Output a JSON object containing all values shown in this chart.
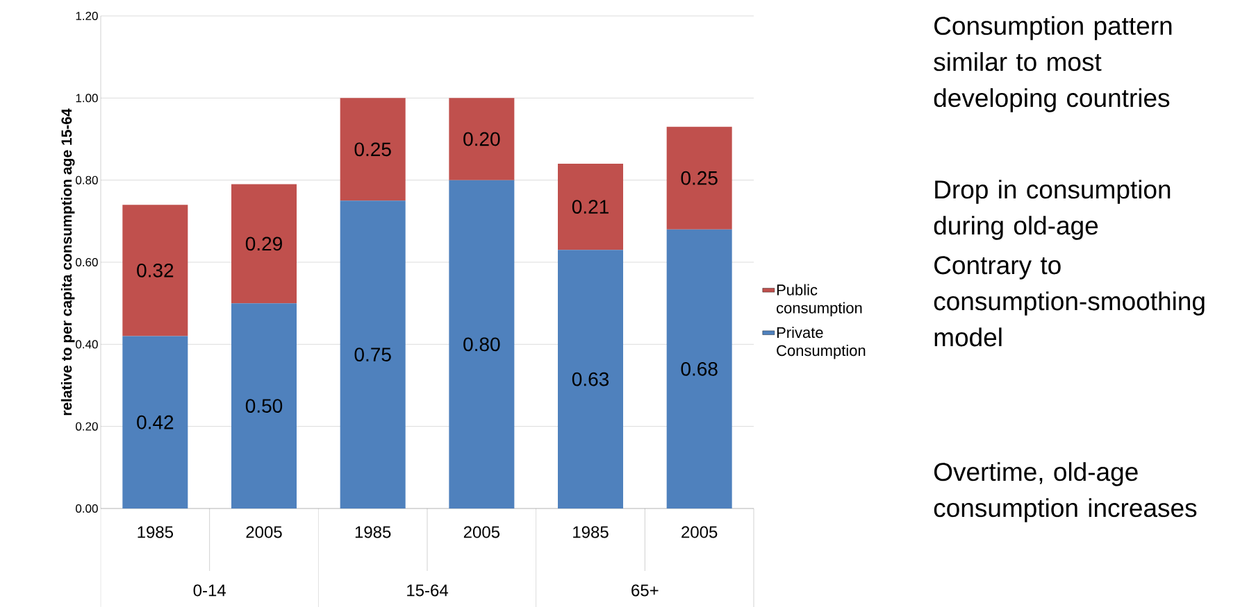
{
  "chart_data": {
    "type": "bar",
    "stacked": true,
    "ylabel": "relative to per capita consumption age 15-64",
    "categories": [
      "1985",
      "2005",
      "1985",
      "2005",
      "1985",
      "2005"
    ],
    "series": [
      {
        "name": "Private Consumption",
        "color": "#4f81bd",
        "values": [
          0.42,
          0.5,
          0.75,
          0.8,
          0.63,
          0.68
        ],
        "value_labels": [
          "0.42",
          "0.50",
          "0.75",
          "0.80",
          "0.63",
          "0.68"
        ]
      },
      {
        "name": "Public consumption",
        "color": "#c0504d",
        "values": [
          0.32,
          0.29,
          0.25,
          0.2,
          0.21,
          0.25
        ],
        "value_labels": [
          "0.32",
          "0.29",
          "0.25",
          "0.20",
          "0.21",
          "0.25"
        ]
      }
    ],
    "ylim": [
      0,
      1.2
    ],
    "yticks": [
      {
        "value": 0,
        "label": "0.00"
      },
      {
        "value": 0.2,
        "label": "0.20"
      },
      {
        "value": 0.4,
        "label": "0.40"
      },
      {
        "value": 0.6,
        "label": "0.60"
      },
      {
        "value": 0.8,
        "label": "0.80"
      },
      {
        "value": 1.0,
        "label": "1.00"
      },
      {
        "value": 1.2,
        "label": "1.20"
      }
    ],
    "grid": "y",
    "legend": "right",
    "annotations": [
      "0-14",
      "15-64",
      "65+",
      "Consumption pattern similar to most developing countries",
      "Drop in consumption during old-age",
      "Contrary to consumption-smoothing model",
      "Overtime, old-age consumption increases"
    ]
  }
}
